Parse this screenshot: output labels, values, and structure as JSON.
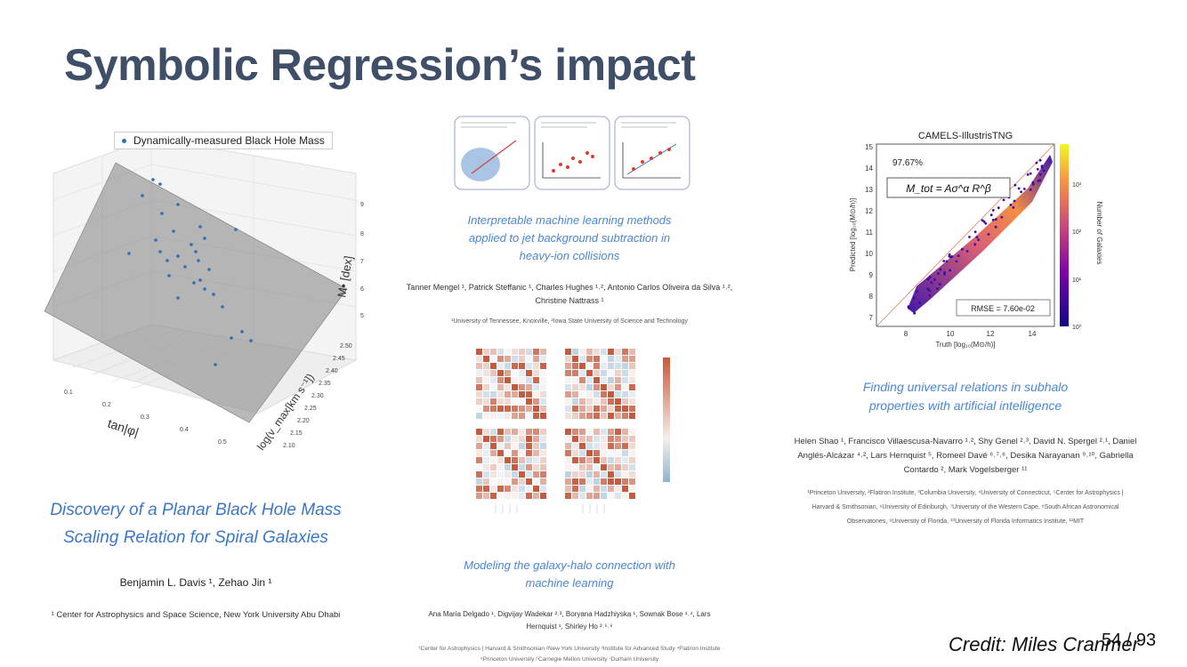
{
  "slide": {
    "title": "Symbolic Regression’s impact",
    "credit": "Credit: Miles Cranmer",
    "page_number": "54 / 93"
  },
  "paper1": {
    "legend_label": "Dynamically-measured Black Hole Mass",
    "axis_x_label": "tan|φ|",
    "axis_y_label": "log(v_max[km s⁻¹])",
    "axis_z_label": "M• [dex]",
    "x_ticks": [
      "0.1",
      "0.2",
      "0.3",
      "0.4",
      "0.5"
    ],
    "y_ticks": [
      "2.10",
      "2.15",
      "2.20",
      "2.25",
      "2.30",
      "2.35",
      "2.40",
      "2.45",
      "2.50"
    ],
    "z_ticks": [
      "5",
      "6",
      "7",
      "8",
      "9"
    ],
    "title_line1": "Discovery of a Planar Black Hole Mass",
    "title_line2": "Scaling Relation for Spiral Galaxies",
    "authors": "Benjamin L. Davis ¹, Zehao Jin ¹",
    "affiliation": "¹ Center for Astrophysics and Space Science, New York University Abu Dhabi"
  },
  "paper2": {
    "title_line1": "Interpretable machine learning methods",
    "title_line2": "applied to jet background subtraction in",
    "title_line3": "heavy-ion collisions",
    "authors_line1": "Tanner Mengel ¹, Patrick Steffanic ¹, Charles Hughes ¹˒², Antonio Carlos Oliveira da Silva ¹˒²,",
    "authors_line2": "Christine Nattrass ¹",
    "affiliation": "¹University of Tennessee, Knoxville, ²Iowa State University of Science and Technology"
  },
  "paper3": {
    "title_line1": "Modeling the galaxy-halo connection with",
    "title_line2": "machine learning",
    "authors_line1": "Ana Maria Delgado ¹, Digvijay Wadekar ²˒³, Boryana Hadzhiyska ¹, Sownak Bose ¹˒⁴, Lars",
    "authors_line2": "Hernquist ¹, Shirley Ho ²˒⁵˒⁶",
    "affiliation_line1": "¹Center for Astrophysics | Harvard & Smithsonian ²New York University ³Institute for Advanced Study ⁴Flatiron Institute",
    "affiliation_line2": "⁵Princeton University ⁶Carnegie Mellon University ⁷Durham University"
  },
  "paper4": {
    "plot_title": "CAMELS-IllustrisTNG",
    "accuracy": "97.67%",
    "formula": "M_tot = Aσ^α R^β",
    "rmse": "RMSE = 7.60e-02",
    "xlabel": "Truth [log₁₀(M⊙/h)]",
    "ylabel": "Predicted [log₁₀(M⊙/h)]",
    "colorbar_label": "Number of Galaxies",
    "x_ticks": [
      "8",
      "10",
      "12",
      "14"
    ],
    "y_ticks": [
      "7",
      "8",
      "9",
      "10",
      "11",
      "12",
      "13",
      "14",
      "15"
    ],
    "cbar_ticks": [
      "10⁰",
      "10¹",
      "10²",
      "10³"
    ],
    "title_line1": "Finding universal relations in subhalo",
    "title_line2": "properties with artificial intelligence",
    "authors_line1": "Helen Shao ¹, Francisco Villaescusa-Navarro ¹˒², Shy Genel ²˒³, David N. Spergel ²˒¹, Daniel",
    "authors_line2": "Anglés-Alcázar ⁴˒², Lars Hernquist ⁵, Romeel Davé ⁶˒⁷˒⁸, Desika Narayanan ⁹˒¹⁰, Gabriella",
    "authors_line3": "Contardo ², Mark Vogelsberger ¹¹",
    "affiliation_line1": "¹Princeton University, ²Flatiron Institute, ³Columbia University, ⁴University of Connecticut, ⁵Center for Astrophysics |",
    "affiliation_line2": "Harvard & Smithsonian, ⁶University of Edinburgh, ⁷University of the Western Cape, ⁸South African Astronomical",
    "affiliation_line3": "Observatories, ⁹University of Florida, ¹⁰University of Florida Informatics Institute, ¹¹MIT"
  },
  "colors": {
    "title": "#3f4f68",
    "paper_title": "#3b77c9",
    "scatter_point": "#2f6fb4",
    "heatmap_warm": "#c8593a",
    "heatmap_cool": "#8fb5d1"
  }
}
